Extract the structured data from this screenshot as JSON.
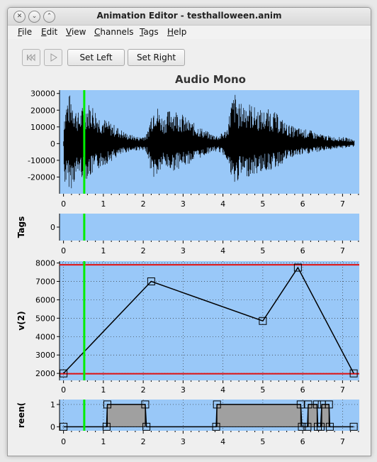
{
  "window": {
    "title": "Animation Editor - testhalloween.anim",
    "buttons": {
      "close": "✕",
      "minimize": "⌄",
      "maximize": "⌃"
    }
  },
  "menu": [
    {
      "label": "File",
      "mnemonic": "F",
      "rest": "ile"
    },
    {
      "label": "Edit",
      "mnemonic": "E",
      "rest": "dit"
    },
    {
      "label": "View",
      "mnemonic": "V",
      "rest": "iew"
    },
    {
      "label": "Channels",
      "mnemonic": "C",
      "rest": "hannels"
    },
    {
      "label": "Tags",
      "mnemonic": "T",
      "rest": "ags"
    },
    {
      "label": "Help",
      "mnemonic": "H",
      "rest": "elp"
    }
  ],
  "toolbar": {
    "rewind_icon": "skip-to-start-icon",
    "play_icon": "play-icon",
    "set_left": "Set Left",
    "set_right": "Set Right"
  },
  "playhead_time": 0.52,
  "colors": {
    "plot_bg": "#99c8f8",
    "playhead": "#00ee00",
    "limit": "#e01010",
    "waveform": "#000000",
    "bar_fill": "#a0a0a0"
  },
  "chart_data": [
    {
      "type": "line",
      "title": "Audio Mono",
      "ylabel": "",
      "xlim": [
        -0.1,
        7.42
      ],
      "ylim": [
        -30000,
        32000
      ],
      "xticks": [
        "0",
        "1",
        "2",
        "3",
        "4",
        "5",
        "6",
        "7"
      ],
      "yticks": [
        "30000",
        "20000",
        "10000",
        "0",
        "-10000",
        "-20000"
      ],
      "envelope": {
        "x": [
          0,
          0.1,
          0.2,
          0.3,
          0.4,
          0.5,
          0.7,
          0.9,
          1.1,
          1.3,
          1.6,
          1.9,
          2.1,
          2.2,
          2.3,
          2.4,
          2.5,
          2.7,
          2.9,
          3.1,
          3.3,
          3.5,
          3.7,
          3.9,
          4.1,
          4.2,
          4.3,
          4.4,
          4.6,
          4.8,
          5.0,
          5.2,
          5.4,
          5.6,
          5.8,
          6.0,
          6.2,
          6.4,
          6.6,
          6.8,
          7.0,
          7.2,
          7.3
        ],
        "pos": [
          18000,
          29000,
          30000,
          22000,
          18000,
          24000,
          25000,
          17000,
          14000,
          11000,
          6000,
          4000,
          6000,
          19000,
          27000,
          20000,
          16000,
          22000,
          20000,
          15000,
          12000,
          9000,
          6000,
          5000,
          9000,
          25000,
          31000,
          24000,
          26000,
          22000,
          20000,
          21000,
          17000,
          12000,
          10000,
          9000,
          8000,
          6000,
          5000,
          4000,
          4000,
          3000,
          2000
        ],
        "neg": [
          -24000,
          -26000,
          -27000,
          -22000,
          -18000,
          -22000,
          -20000,
          -15000,
          -12000,
          -9000,
          -5000,
          -4000,
          -6000,
          -18000,
          -22000,
          -18000,
          -14000,
          -17000,
          -15000,
          -13000,
          -10000,
          -8000,
          -5000,
          -5000,
          -9000,
          -22000,
          -27000,
          -21000,
          -20000,
          -19000,
          -17000,
          -16000,
          -14000,
          -10000,
          -8000,
          -7000,
          -6000,
          -5000,
          -4000,
          -3000,
          -3000,
          -2000,
          -2000
        ]
      }
    },
    {
      "type": "line",
      "title": "",
      "ylabel": "Tags",
      "xlim": [
        -0.1,
        7.42
      ],
      "ylim": [
        -1,
        1
      ],
      "xticks": [
        "0",
        "1",
        "2",
        "3",
        "4",
        "5",
        "6",
        "7"
      ],
      "yticks": [
        "0"
      ]
    },
    {
      "type": "line",
      "title": "",
      "ylabel": "v(2)",
      "xlim": [
        -0.1,
        7.42
      ],
      "ylim": [
        1620,
        8100
      ],
      "xticks": [
        "0",
        "1",
        "2",
        "3",
        "4",
        "5",
        "6",
        "7"
      ],
      "yticks": [
        "8000",
        "7000",
        "6000",
        "5000",
        "4000",
        "3000",
        "2000"
      ],
      "limits": [
        7900,
        1980
      ],
      "x": [
        0,
        2.2,
        5.0,
        5.88,
        7.28
      ],
      "y": [
        2000,
        7000,
        4850,
        7750,
        2000
      ]
    },
    {
      "type": "line",
      "title": "",
      "ylabel": "reen(",
      "xlim": [
        -0.1,
        7.42
      ],
      "ylim": [
        -0.18,
        1.22
      ],
      "xticks": [
        "0",
        "1",
        "2",
        "3",
        "4",
        "5",
        "6",
        "7"
      ],
      "yticks": [
        "1",
        "0"
      ],
      "x": [
        0,
        1.08,
        1.1,
        2.05,
        2.08,
        3.83,
        3.85,
        5.95,
        5.98,
        6.12,
        6.14,
        6.36,
        6.38,
        6.45,
        6.48,
        6.66,
        6.68,
        7.28
      ],
      "y": [
        0,
        0,
        1,
        1,
        0,
        0,
        1,
        1,
        0,
        0,
        1,
        1,
        0,
        0,
        1,
        1,
        0,
        0
      ]
    }
  ]
}
